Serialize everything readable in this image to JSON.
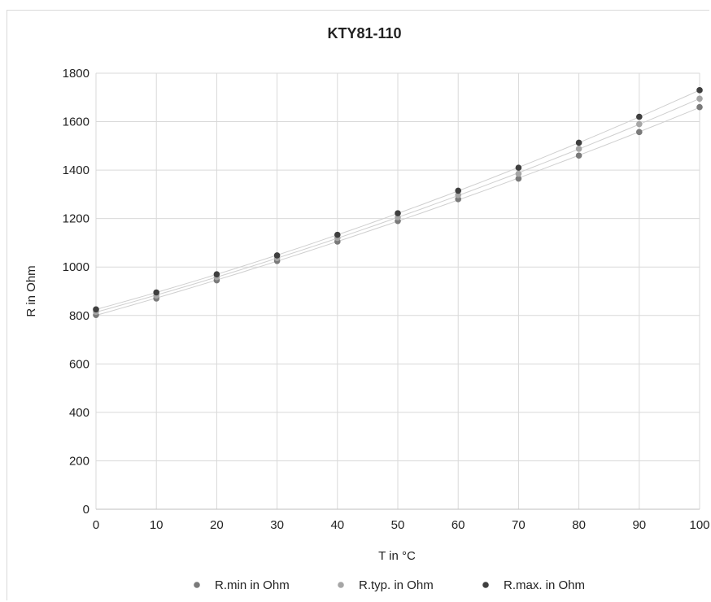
{
  "chart_data": {
    "type": "scatter",
    "title": "KTY81-110",
    "xlabel": "T in °C",
    "ylabel": "R in Ohm",
    "xlim": [
      0,
      100
    ],
    "ylim": [
      0,
      1800
    ],
    "xticks": [
      0,
      10,
      20,
      30,
      40,
      50,
      60,
      70,
      80,
      90,
      100
    ],
    "yticks": [
      0,
      200,
      400,
      600,
      800,
      1000,
      1200,
      1400,
      1600,
      1800
    ],
    "grid": true,
    "legend_position": "bottom",
    "trendlines": true,
    "x": [
      0,
      10,
      20,
      30,
      40,
      50,
      60,
      70,
      80,
      90,
      100
    ],
    "series": [
      {
        "name": "R.min in Ohm",
        "color": "#7a7a7a",
        "values": [
          802,
          870,
          945,
          1025,
          1105,
          1190,
          1280,
          1365,
          1460,
          1557,
          1660
        ]
      },
      {
        "name": "R.typ. in Ohm",
        "color": "#a6a6a6",
        "values": [
          815,
          882,
          958,
          1037,
          1120,
          1205,
          1297,
          1385,
          1488,
          1590,
          1695
        ]
      },
      {
        "name": "R.max. in Ohm",
        "color": "#3f3f3f",
        "values": [
          825,
          895,
          970,
          1048,
          1133,
          1222,
          1315,
          1410,
          1513,
          1620,
          1730
        ]
      }
    ]
  }
}
